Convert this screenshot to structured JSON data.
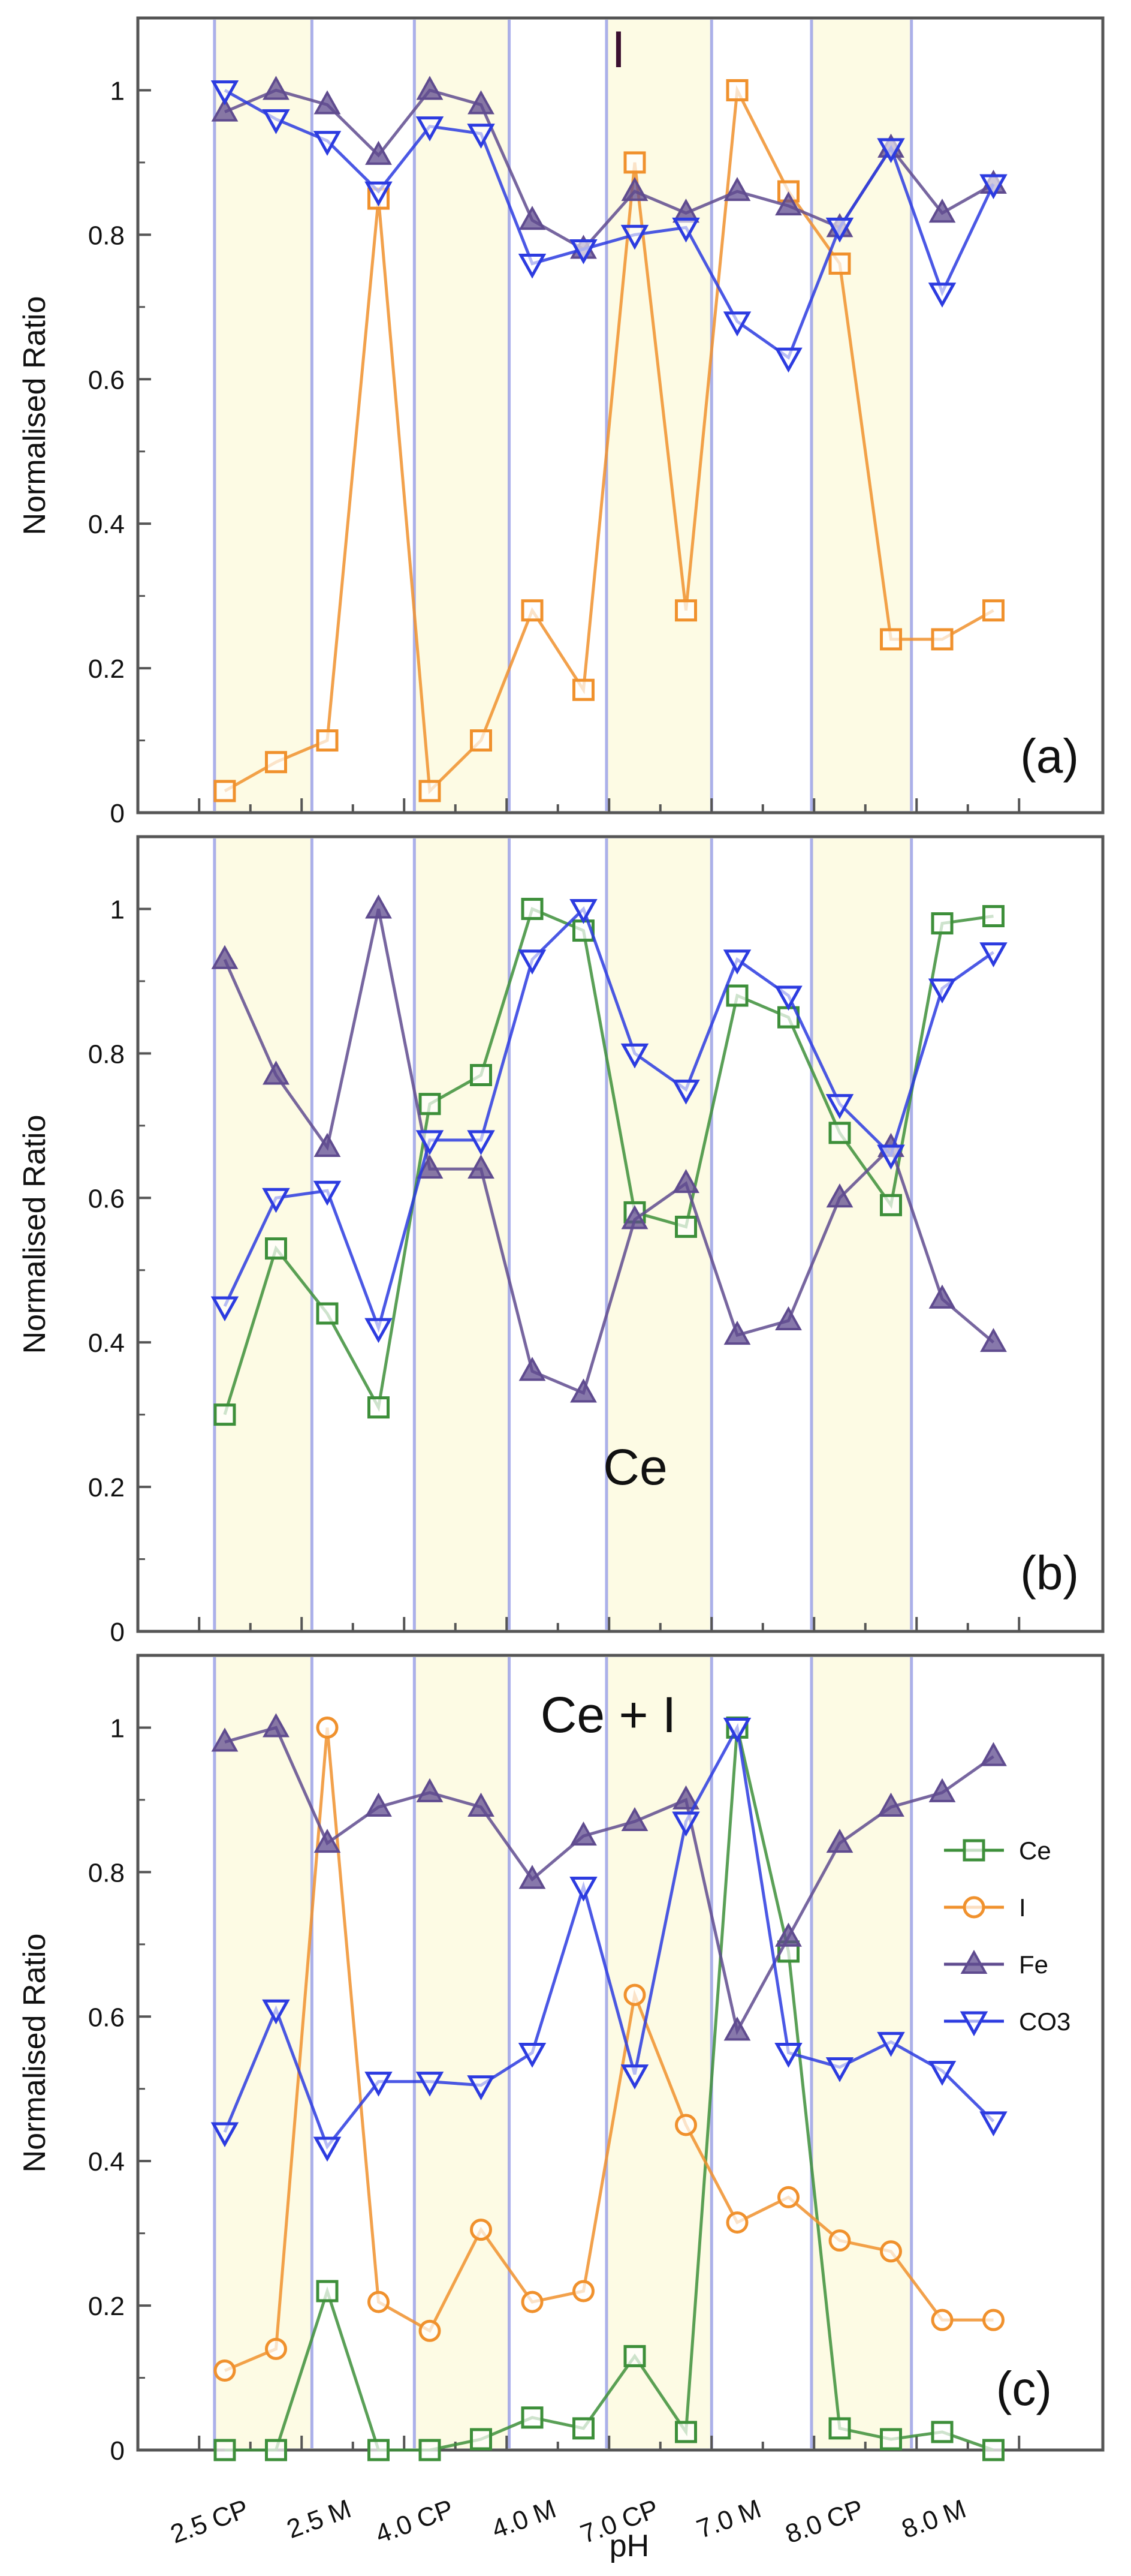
{
  "figure": {
    "x_tick_labels": [
      "2.5 CP",
      "2.5 M",
      "4.0 CP",
      "4.0 M",
      "7.0 CP",
      "7.0 M",
      "8.0 CP",
      "8.0 M"
    ],
    "x_axis_label": "pH",
    "series_colors": {
      "Ce": "#3d8f3a",
      "I": "#f0912d",
      "Fe": "#5f4b8f",
      "CO3": "#2c3be0"
    },
    "band_color": "#fdfbe4",
    "divider_color": "#8f96e6"
  },
  "chart_data": [
    {
      "id": "a",
      "type": "line",
      "title": "I",
      "panel_label": "(a)",
      "ylabel": "Normalised Ratio",
      "ylim": [
        0,
        1.1
      ],
      "yticks": [
        0,
        0.2,
        0.4,
        0.6,
        0.8,
        1
      ],
      "ytick_labels": [
        "0",
        "0.2",
        "0.4",
        "0.6",
        "0.8",
        "1"
      ],
      "x": [
        1,
        2,
        3,
        4,
        5,
        6,
        7,
        8,
        9,
        10,
        11,
        12,
        13,
        14,
        15,
        16
      ],
      "series": [
        {
          "name": "I",
          "marker": "square",
          "values": [
            0.03,
            0.07,
            0.1,
            0.85,
            0.03,
            0.1,
            0.28,
            0.17,
            0.9,
            0.28,
            1.0,
            0.86,
            0.76,
            0.24,
            0.24,
            0.28
          ]
        },
        {
          "name": "Fe",
          "marker": "triangle-up",
          "values": [
            0.97,
            1.0,
            0.98,
            0.91,
            1.0,
            0.98,
            0.82,
            0.78,
            0.86,
            0.83,
            0.86,
            0.84,
            0.81,
            0.92,
            0.83,
            0.87
          ]
        },
        {
          "name": "CO3",
          "marker": "triangle-down",
          "values": [
            1.0,
            0.96,
            0.93,
            0.86,
            0.95,
            0.94,
            0.76,
            0.78,
            0.8,
            0.81,
            0.68,
            0.63,
            0.81,
            0.92,
            0.72,
            0.87
          ]
        }
      ]
    },
    {
      "id": "b",
      "type": "line",
      "title": "Ce",
      "panel_label": "(b)",
      "ylabel": "Normalised Ratio",
      "ylim": [
        0,
        1.1
      ],
      "yticks": [
        0,
        0.2,
        0.4,
        0.6,
        0.8,
        1
      ],
      "ytick_labels": [
        "0",
        "0.2",
        "0.4",
        "0.6",
        "0.8",
        "1"
      ],
      "x": [
        1,
        2,
        3,
        4,
        5,
        6,
        7,
        8,
        9,
        10,
        11,
        12,
        13,
        14,
        15,
        16
      ],
      "series": [
        {
          "name": "Ce",
          "marker": "square",
          "values": [
            0.3,
            0.53,
            0.44,
            0.31,
            0.73,
            0.77,
            1.0,
            0.97,
            0.58,
            0.56,
            0.88,
            0.85,
            0.69,
            0.59,
            0.98,
            0.99
          ]
        },
        {
          "name": "Fe",
          "marker": "triangle-up",
          "values": [
            0.93,
            0.77,
            0.67,
            1.0,
            0.64,
            0.64,
            0.36,
            0.33,
            0.57,
            0.62,
            0.41,
            0.43,
            0.6,
            0.67,
            0.46,
            0.4
          ]
        },
        {
          "name": "CO3",
          "marker": "triangle-down",
          "values": [
            0.45,
            0.6,
            0.61,
            0.42,
            0.68,
            0.68,
            0.93,
            1.0,
            0.8,
            0.75,
            0.93,
            0.88,
            0.73,
            0.66,
            0.89,
            0.94
          ]
        }
      ]
    },
    {
      "id": "c",
      "type": "line",
      "title": "Ce + I",
      "panel_label": "(c)",
      "ylabel": "Normalised Ratio",
      "ylim": [
        0,
        1.1
      ],
      "yticks": [
        0,
        0.2,
        0.4,
        0.6,
        0.8,
        1
      ],
      "ytick_labels": [
        "0",
        "0.2",
        "0.4",
        "0.6",
        "0.8",
        "1"
      ],
      "legend_position": "right",
      "legend": [
        "Ce",
        "I",
        "Fe",
        "CO3"
      ],
      "x": [
        1,
        2,
        3,
        4,
        5,
        6,
        7,
        8,
        9,
        10,
        11,
        12,
        13,
        14,
        15,
        16
      ],
      "series": [
        {
          "name": "Ce",
          "marker": "square",
          "values": [
            0.0,
            0.0,
            0.22,
            0.0,
            0.0,
            0.015,
            0.045,
            0.03,
            0.13,
            0.025,
            1.0,
            0.69,
            0.03,
            0.015,
            0.025,
            0.0
          ]
        },
        {
          "name": "I",
          "marker": "circle",
          "values": [
            0.11,
            0.14,
            1.0,
            0.205,
            0.165,
            0.305,
            0.205,
            0.22,
            0.63,
            0.45,
            0.315,
            0.35,
            0.29,
            0.275,
            0.18,
            0.18
          ]
        },
        {
          "name": "Fe",
          "marker": "triangle-up",
          "values": [
            0.98,
            1.0,
            0.84,
            0.89,
            0.91,
            0.89,
            0.79,
            0.85,
            0.87,
            0.9,
            0.58,
            0.71,
            0.84,
            0.89,
            0.91,
            0.96
          ]
        },
        {
          "name": "CO3",
          "marker": "triangle-down",
          "values": [
            0.44,
            0.61,
            0.42,
            0.51,
            0.51,
            0.505,
            0.55,
            0.78,
            0.52,
            0.87,
            1.0,
            0.55,
            0.53,
            0.565,
            0.525,
            0.455
          ]
        }
      ]
    }
  ]
}
